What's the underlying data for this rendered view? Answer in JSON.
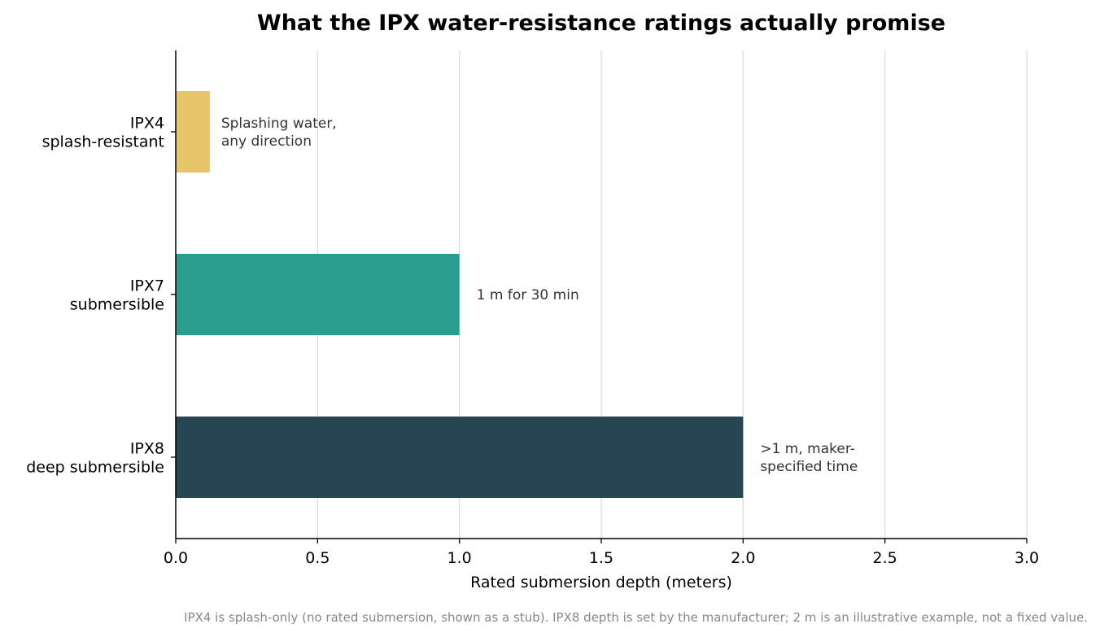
{
  "chart_data": {
    "type": "bar",
    "orientation": "horizontal",
    "title": "What the IPX water-resistance ratings actually promise",
    "xlabel": "Rated submersion depth (meters)",
    "ylabel": "",
    "xlim": [
      0,
      3.0
    ],
    "xticks": [
      "0.0",
      "0.5",
      "1.0",
      "1.5",
      "2.0",
      "2.5",
      "3.0"
    ],
    "grid": "vertical",
    "categories": [
      [
        "IPX4",
        "splash-resistant"
      ],
      [
        "IPX7",
        "submersible"
      ],
      [
        "IPX8",
        "deep submersible"
      ]
    ],
    "values": [
      0.12,
      1.0,
      2.0
    ],
    "colors": [
      "#e8c46a",
      "#2a9d8f",
      "#264653"
    ],
    "annotations": [
      [
        "Splashing water,",
        "any direction"
      ],
      [
        "1 m for 30 min"
      ],
      [
        ">1 m, maker-",
        "specified time"
      ]
    ],
    "footnote": "IPX4 is splash-only (no rated submersion, shown as a stub). IPX8 depth is set by the manufacturer; 2 m is an illustrative example, not a fixed value."
  }
}
